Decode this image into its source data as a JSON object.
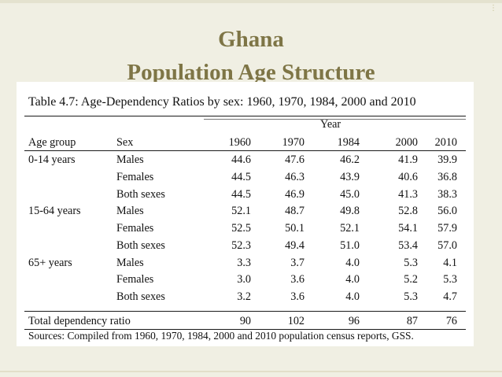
{
  "slide": {
    "title_line1": "Ghana",
    "title_line2": "Population Age Structure",
    "corner_icon": "dots-icon"
  },
  "table": {
    "caption": "Table 4.7: Age-Dependency Ratios by sex: 1960, 1970, 1984, 2000 and 2010",
    "year_header": "Year",
    "col_age_group": "Age group",
    "col_sex": "Sex",
    "years": [
      "1960",
      "1970",
      "1984",
      "2000",
      "2010"
    ],
    "rows": [
      {
        "age": "0-14 years",
        "sex": "Males",
        "values": [
          "44.6",
          "47.6",
          "46.2",
          "41.9",
          "39.9"
        ]
      },
      {
        "age": "",
        "sex": "Females",
        "values": [
          "44.5",
          "46.3",
          "43.9",
          "40.6",
          "36.8"
        ]
      },
      {
        "age": "",
        "sex": "Both sexes",
        "values": [
          "44.5",
          "46.9",
          "45.0",
          "41.3",
          "38.3"
        ]
      },
      {
        "age": "15-64 years",
        "sex": "Males",
        "values": [
          "52.1",
          "48.7",
          "49.8",
          "52.8",
          "56.0"
        ]
      },
      {
        "age": "",
        "sex": "Females",
        "values": [
          "52.5",
          "50.1",
          "52.1",
          "54.1",
          "57.9"
        ]
      },
      {
        "age": "",
        "sex": "Both sexes",
        "values": [
          "52.3",
          "49.4",
          "51.0",
          "53.4",
          "57.0"
        ]
      },
      {
        "age": "65+ years",
        "sex": "Males",
        "values": [
          "3.3",
          "3.7",
          "4.0",
          "5.3",
          "4.1"
        ]
      },
      {
        "age": "",
        "sex": "Females",
        "values": [
          "3.0",
          "3.6",
          "4.0",
          "5.2",
          "5.3"
        ]
      },
      {
        "age": "",
        "sex": "Both sexes",
        "values": [
          "3.2",
          "3.6",
          "4.0",
          "5.3",
          "4.7"
        ]
      }
    ],
    "total_label": "Total dependency ratio",
    "total_values": [
      "90",
      "102",
      "96",
      "87",
      "76"
    ],
    "source": "Sources: Compiled from 1960, 1970, 1984, 2000 and 2010 population census reports, GSS."
  }
}
